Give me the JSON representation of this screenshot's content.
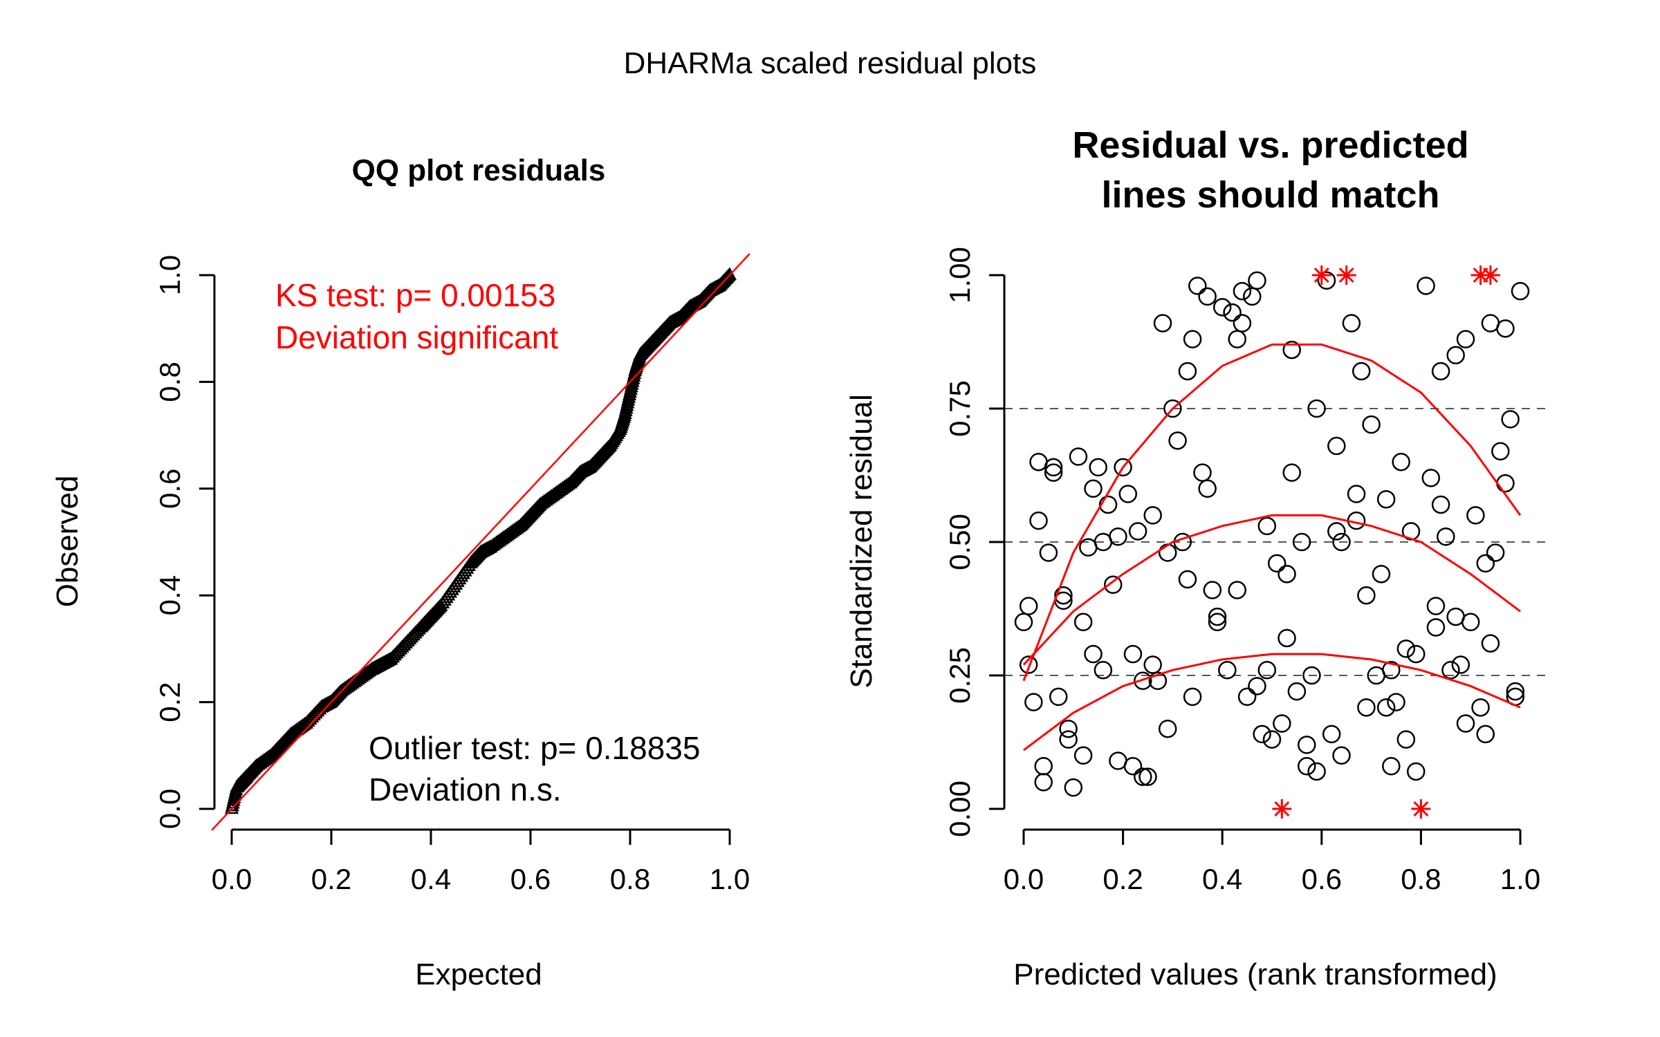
{
  "figure": {
    "title": "DHARMa scaled residual plots"
  },
  "chart_data": [
    {
      "type": "scatter",
      "title": "QQ plot residuals",
      "xlabel": "Expected",
      "ylabel": "Observed",
      "xlim": [
        0,
        1
      ],
      "ylim": [
        0,
        1
      ],
      "xticks": [
        "0.0",
        "0.2",
        "0.4",
        "0.6",
        "0.8",
        "1.0"
      ],
      "yticks": [
        "0.0",
        "0.2",
        "0.4",
        "0.6",
        "0.8",
        "1.0"
      ],
      "series": [
        {
          "marker": "triangle",
          "x": [
            0.0,
            0.01,
            0.02,
            0.03,
            0.05,
            0.08,
            0.1,
            0.12,
            0.15,
            0.18,
            0.2,
            0.22,
            0.25,
            0.28,
            0.3,
            0.32,
            0.35,
            0.38,
            0.4,
            0.42,
            0.45,
            0.48,
            0.5,
            0.52,
            0.55,
            0.58,
            0.6,
            0.62,
            0.65,
            0.68,
            0.7,
            0.72,
            0.74,
            0.76,
            0.78,
            0.79,
            0.8,
            0.81,
            0.82,
            0.84,
            0.86,
            0.88,
            0.9,
            0.92,
            0.94,
            0.96,
            0.98,
            1.0
          ],
          "y": [
            0.0,
            0.04,
            0.05,
            0.06,
            0.08,
            0.1,
            0.12,
            0.14,
            0.16,
            0.19,
            0.2,
            0.22,
            0.24,
            0.26,
            0.27,
            0.28,
            0.31,
            0.34,
            0.36,
            0.38,
            0.42,
            0.46,
            0.48,
            0.49,
            0.51,
            0.53,
            0.55,
            0.57,
            0.59,
            0.61,
            0.63,
            0.64,
            0.66,
            0.68,
            0.71,
            0.74,
            0.78,
            0.82,
            0.85,
            0.87,
            0.89,
            0.91,
            0.92,
            0.94,
            0.95,
            0.97,
            0.98,
            1.0
          ]
        }
      ],
      "reference_line": {
        "from": [
          0,
          0
        ],
        "to": [
          1,
          1
        ],
        "color": "#ff0000"
      },
      "annotations": {
        "ks_line1": "KS test: p= 0.00153",
        "ks_line2": "Deviation  significant",
        "outlier_line1": "Outlier test: p= 0.18835",
        "outlier_line2": "Deviation  n.s."
      }
    },
    {
      "type": "scatter",
      "title_line1": "Residual vs. predicted",
      "title_line2": "lines should match",
      "xlabel": "Predicted values (rank transformed)",
      "ylabel": "Standardized residual",
      "xlim": [
        0,
        1
      ],
      "ylim": [
        0,
        1
      ],
      "xticks": [
        "0.0",
        "0.2",
        "0.4",
        "0.6",
        "0.8",
        "1.0"
      ],
      "yticks": [
        "0.00",
        "0.25",
        "0.50",
        "0.75",
        "1.00"
      ],
      "hlines": [
        0.25,
        0.5,
        0.75
      ],
      "quantile_curves": [
        {
          "quantile": 0.75,
          "x": [
            0,
            0.1,
            0.2,
            0.3,
            0.4,
            0.5,
            0.6,
            0.7,
            0.8,
            0.9,
            1.0
          ],
          "y": [
            0.24,
            0.48,
            0.64,
            0.75,
            0.83,
            0.87,
            0.87,
            0.84,
            0.78,
            0.68,
            0.55
          ]
        },
        {
          "quantile": 0.5,
          "x": [
            0,
            0.1,
            0.2,
            0.3,
            0.4,
            0.5,
            0.6,
            0.7,
            0.8,
            0.9,
            1.0
          ],
          "y": [
            0.27,
            0.37,
            0.44,
            0.5,
            0.53,
            0.55,
            0.55,
            0.53,
            0.5,
            0.44,
            0.37
          ]
        },
        {
          "quantile": 0.25,
          "x": [
            0,
            0.1,
            0.2,
            0.3,
            0.4,
            0.5,
            0.6,
            0.7,
            0.8,
            0.9,
            1.0
          ],
          "y": [
            0.11,
            0.18,
            0.23,
            0.26,
            0.28,
            0.29,
            0.29,
            0.28,
            0.26,
            0.23,
            0.19
          ]
        }
      ],
      "points": {
        "x": [
          0.0,
          0.01,
          0.01,
          0.02,
          0.03,
          0.04,
          0.05,
          0.06,
          0.07,
          0.08,
          0.09,
          0.1,
          0.11,
          0.12,
          0.13,
          0.14,
          0.15,
          0.16,
          0.17,
          0.18,
          0.19,
          0.2,
          0.21,
          0.22,
          0.23,
          0.24,
          0.25,
          0.26,
          0.27,
          0.28,
          0.29,
          0.3,
          0.31,
          0.32,
          0.33,
          0.34,
          0.35,
          0.36,
          0.37,
          0.38,
          0.39,
          0.4,
          0.41,
          0.42,
          0.43,
          0.44,
          0.45,
          0.46,
          0.47,
          0.48,
          0.49,
          0.5,
          0.51,
          0.52,
          0.53,
          0.54,
          0.55,
          0.56,
          0.57,
          0.58,
          0.59,
          0.61,
          0.62,
          0.63,
          0.64,
          0.66,
          0.67,
          0.68,
          0.69,
          0.7,
          0.71,
          0.72,
          0.73,
          0.74,
          0.75,
          0.76,
          0.77,
          0.78,
          0.79,
          0.81,
          0.82,
          0.83,
          0.84,
          0.85,
          0.86,
          0.87,
          0.88,
          0.89,
          0.9,
          0.91,
          0.92,
          0.93,
          0.94,
          0.95,
          0.96,
          0.97,
          0.98,
          0.99,
          1.0,
          0.04,
          0.06,
          0.08,
          0.12,
          0.16,
          0.22,
          0.26,
          0.33,
          0.37,
          0.43,
          0.47,
          0.53,
          0.57,
          0.63,
          0.67,
          0.73,
          0.77,
          0.83,
          0.87,
          0.93,
          0.97,
          0.03,
          0.09,
          0.14,
          0.19,
          0.24,
          0.29,
          0.34,
          0.39,
          0.44,
          0.49,
          0.54,
          0.59,
          0.64,
          0.69,
          0.74,
          0.79,
          0.84,
          0.89,
          0.94,
          0.99
        ],
        "y": [
          0.35,
          0.27,
          0.38,
          0.2,
          0.65,
          0.08,
          0.48,
          0.63,
          0.21,
          0.4,
          0.15,
          0.04,
          0.66,
          0.35,
          0.49,
          0.29,
          0.64,
          0.26,
          0.57,
          0.42,
          0.09,
          0.64,
          0.59,
          0.08,
          0.52,
          0.24,
          0.06,
          0.55,
          0.24,
          0.91,
          0.15,
          0.75,
          0.69,
          0.5,
          0.43,
          0.88,
          0.98,
          0.63,
          0.96,
          0.41,
          0.35,
          0.94,
          0.26,
          0.93,
          0.88,
          0.97,
          0.21,
          0.96,
          0.99,
          0.14,
          0.53,
          0.13,
          0.46,
          0.16,
          0.32,
          0.63,
          0.22,
          0.5,
          0.08,
          0.25,
          0.75,
          0.99,
          0.14,
          0.68,
          0.1,
          0.91,
          0.54,
          0.82,
          0.4,
          0.72,
          0.25,
          0.44,
          0.58,
          0.08,
          0.2,
          0.65,
          0.3,
          0.52,
          0.07,
          0.98,
          0.62,
          0.34,
          0.82,
          0.51,
          0.26,
          0.36,
          0.27,
          0.88,
          0.35,
          0.55,
          0.19,
          0.46,
          0.91,
          0.48,
          0.67,
          0.9,
          0.73,
          0.21,
          0.97,
          0.05,
          0.64,
          0.39,
          0.1,
          0.5,
          0.29,
          0.27,
          0.82,
          0.6,
          0.41,
          0.23,
          0.44,
          0.12,
          0.52,
          0.59,
          0.19,
          0.13,
          0.38,
          0.85,
          0.14,
          0.61,
          0.54,
          0.13,
          0.6,
          0.51,
          0.06,
          0.48,
          0.21,
          0.36,
          0.91,
          0.26,
          0.86,
          0.07,
          0.5,
          0.19,
          0.26,
          0.29,
          0.57,
          0.16,
          0.31,
          0.22
        ]
      },
      "outliers": {
        "x": [
          0.6,
          0.65,
          0.92,
          0.94,
          0.52,
          0.8
        ],
        "y": [
          1.0,
          1.0,
          1.0,
          1.0,
          0.0,
          0.0
        ]
      },
      "colors": {
        "curves": "#ff0000",
        "outliers": "#ff0000",
        "points": "#000000",
        "hlines": "#555555"
      }
    }
  ]
}
